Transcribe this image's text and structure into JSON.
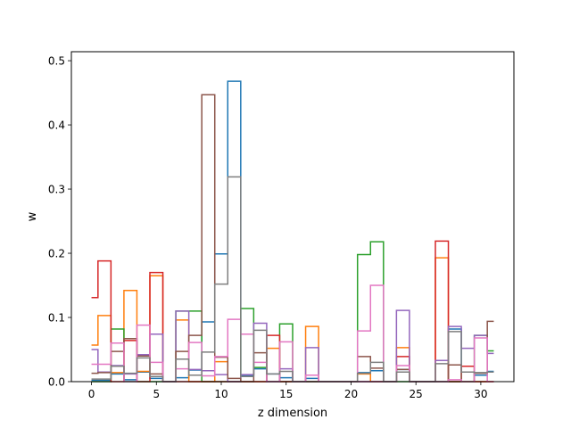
{
  "chart_data": {
    "type": "line",
    "drawstyle": "steps-mid",
    "title": "",
    "xlabel": "z dimension",
    "ylabel": "w",
    "xlim": [
      -1.55,
      32.55
    ],
    "ylim": [
      0,
      0.514
    ],
    "xticks": [
      0,
      5,
      10,
      15,
      20,
      25,
      30
    ],
    "yticks": [
      0.0,
      0.1,
      0.2,
      0.3,
      0.4,
      0.5
    ],
    "ytick_labels": [
      "0.0",
      "0.1",
      "0.2",
      "0.3",
      "0.4",
      "0.5"
    ],
    "grid": false,
    "legend": "none",
    "x": [
      0,
      1,
      2,
      3,
      4,
      5,
      6,
      7,
      8,
      9,
      10,
      11,
      12,
      13,
      14,
      15,
      16,
      17,
      18,
      19,
      20,
      21,
      22,
      23,
      24,
      25,
      26,
      27,
      28,
      29,
      30,
      31
    ],
    "series": [
      {
        "color": "#1f77b4",
        "values": [
          0.002,
          0.002,
          0.012,
          0.003,
          0.015,
          0.005,
          0.0,
          0.006,
          0.018,
          0.093,
          0.199,
          0.468,
          0.01,
          0.02,
          0.012,
          0.006,
          0.0,
          0.005,
          0.0,
          0.0,
          0.0,
          0.014,
          0.017,
          0.0,
          0.019,
          0.0,
          0.0,
          0.0,
          0.082,
          0.015,
          0.01,
          0.016
        ]
      },
      {
        "color": "#ff7f0e",
        "values": [
          0.057,
          0.103,
          0.014,
          0.142,
          0.016,
          0.165,
          0.0,
          0.096,
          0.0,
          0.0,
          0.031,
          0.0,
          0.0,
          0.0,
          0.052,
          0.0,
          0.0,
          0.086,
          0.0,
          0.0,
          0.0,
          0.012,
          0.0,
          0.0,
          0.053,
          0.0,
          0.0,
          0.193,
          0.0,
          0.0,
          0.0,
          0.0
        ]
      },
      {
        "color": "#2ca02c",
        "values": [
          0.0,
          0.0,
          0.082,
          0.0,
          0.0,
          0.0,
          0.0,
          0.11,
          0.11,
          0.0,
          0.0,
          0.0,
          0.114,
          0.022,
          0.0,
          0.09,
          0.0,
          0.0,
          0.0,
          0.0,
          0.0,
          0.198,
          0.218,
          0.0,
          0.0,
          0.0,
          0.0,
          0.0,
          0.0,
          0.0,
          0.072,
          0.048
        ]
      },
      {
        "color": "#d62728",
        "values": [
          0.131,
          0.188,
          0.0,
          0.064,
          0.0,
          0.17,
          0.0,
          0.0,
          0.0,
          0.0,
          0.0,
          0.0,
          0.0,
          0.0,
          0.072,
          0.0,
          0.0,
          0.0,
          0.0,
          0.0,
          0.0,
          0.0,
          0.0,
          0.0,
          0.039,
          0.0,
          0.0,
          0.219,
          0.0,
          0.024,
          0.0,
          0.0
        ]
      },
      {
        "color": "#9467bd",
        "values": [
          0.05,
          0.015,
          0.025,
          0.012,
          0.042,
          0.074,
          0.0,
          0.11,
          0.019,
          0.017,
          0.011,
          0.0,
          0.011,
          0.091,
          0.0,
          0.02,
          0.0,
          0.053,
          0.0,
          0.0,
          0.0,
          0.0,
          0.0,
          0.0,
          0.111,
          0.0,
          0.0,
          0.033,
          0.086,
          0.052,
          0.072,
          0.044
        ]
      },
      {
        "color": "#8c564b",
        "values": [
          0.013,
          0.014,
          0.047,
          0.067,
          0.04,
          0.012,
          0.0,
          0.047,
          0.072,
          0.447,
          0.038,
          0.005,
          0.0,
          0.045,
          0.0,
          0.0,
          0.0,
          0.0,
          0.0,
          0.0,
          0.0,
          0.039,
          0.021,
          0.0,
          0.019,
          0.0,
          0.0,
          0.0,
          0.026,
          0.0,
          0.013,
          0.094
        ]
      },
      {
        "color": "#e377c2",
        "values": [
          0.027,
          0.027,
          0.06,
          0.0,
          0.088,
          0.03,
          0.0,
          0.02,
          0.061,
          0.009,
          0.039,
          0.097,
          0.074,
          0.03,
          0.0,
          0.062,
          0.0,
          0.01,
          0.0,
          0.0,
          0.0,
          0.079,
          0.15,
          0.0,
          0.025,
          0.0,
          0.0,
          0.0,
          0.003,
          0.0,
          0.068,
          0.0
        ]
      },
      {
        "color": "#7f7f7f",
        "values": [
          0.004,
          0.004,
          0.024,
          0.013,
          0.037,
          0.008,
          0.0,
          0.035,
          0.01,
          0.046,
          0.152,
          0.319,
          0.008,
          0.08,
          0.012,
          0.016,
          0.0,
          0.0,
          0.0,
          0.0,
          0.0,
          0.013,
          0.03,
          0.0,
          0.015,
          0.0,
          0.0,
          0.028,
          0.078,
          0.015,
          0.014,
          0.015
        ]
      }
    ]
  }
}
